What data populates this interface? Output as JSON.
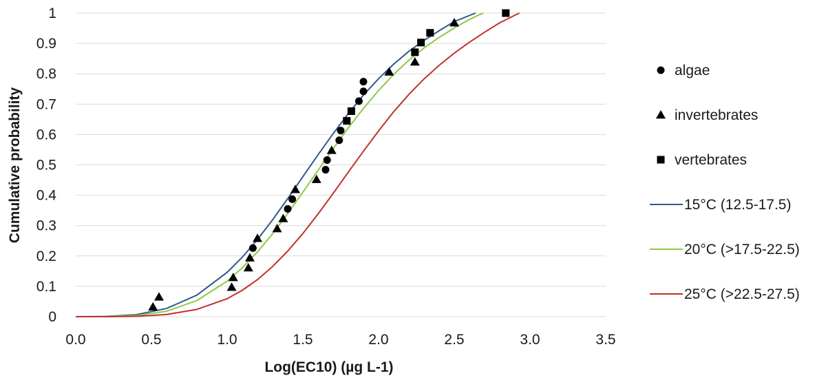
{
  "chart_data": {
    "type": "scatter",
    "title": "",
    "xlabel": "Log(EC10) (µg L-1)",
    "ylabel": "Cumulative probability",
    "xlim": [
      0,
      3.5
    ],
    "ylim": [
      0,
      1
    ],
    "x_ticks": [
      0,
      0.5,
      1,
      1.5,
      2,
      2.5,
      3,
      3.5
    ],
    "y_ticks": [
      0,
      0.1,
      0.2,
      0.3,
      0.4,
      0.5,
      0.6,
      0.7,
      0.8,
      0.9,
      1
    ],
    "x_tick_labels": [
      "0.0",
      "0.5",
      "1.0",
      "1.5",
      "2.0",
      "2.5",
      "3.0",
      "3.5"
    ],
    "y_tick_labels": [
      "0",
      "0.1",
      "0.2",
      "0.3",
      "0.4",
      "0.5",
      "0.6",
      "0.7",
      "0.8",
      "0.9",
      "1"
    ],
    "grid": true,
    "legend_position": "right",
    "series": [
      {
        "name": "algae",
        "kind": "scatter",
        "marker": "circle",
        "color": "#000000",
        "points": [
          [
            1.17,
            0.226
          ],
          [
            1.4,
            0.355
          ],
          [
            1.43,
            0.387
          ],
          [
            1.65,
            0.484
          ],
          [
            1.66,
            0.516
          ],
          [
            1.74,
            0.581
          ],
          [
            1.75,
            0.613
          ],
          [
            1.87,
            0.71
          ],
          [
            1.9,
            0.742
          ],
          [
            1.9,
            0.774
          ]
        ]
      },
      {
        "name": "invertebrates",
        "kind": "scatter",
        "marker": "triangle",
        "color": "#000000",
        "points": [
          [
            0.51,
            0.032
          ],
          [
            0.55,
            0.065
          ],
          [
            1.03,
            0.097
          ],
          [
            1.04,
            0.129
          ],
          [
            1.14,
            0.161
          ],
          [
            1.15,
            0.194
          ],
          [
            1.2,
            0.258
          ],
          [
            1.33,
            0.29
          ],
          [
            1.37,
            0.323
          ],
          [
            1.45,
            0.419
          ],
          [
            1.59,
            0.452
          ],
          [
            1.69,
            0.548
          ],
          [
            2.07,
            0.806
          ],
          [
            2.24,
            0.839
          ],
          [
            2.5,
            0.968
          ]
        ]
      },
      {
        "name": "vertebrates",
        "kind": "scatter",
        "marker": "square",
        "color": "#000000",
        "points": [
          [
            1.79,
            0.645
          ],
          [
            1.82,
            0.677
          ],
          [
            2.24,
            0.871
          ],
          [
            2.28,
            0.903
          ],
          [
            2.34,
            0.935
          ],
          [
            2.84,
            1.0
          ]
        ]
      },
      {
        "name": "15°C (12.5-17.5)",
        "kind": "line",
        "color": "#2e5a88",
        "points": [
          [
            0,
            0.0
          ],
          [
            0.2,
            0.0008
          ],
          [
            0.4,
            0.0065
          ],
          [
            0.6,
            0.027
          ],
          [
            0.8,
            0.071
          ],
          [
            1.0,
            0.146
          ],
          [
            1.1,
            0.196
          ],
          [
            1.2,
            0.254
          ],
          [
            1.3,
            0.319
          ],
          [
            1.4,
            0.389
          ],
          [
            1.5,
            0.461
          ],
          [
            1.6,
            0.533
          ],
          [
            1.7,
            0.603
          ],
          [
            1.8,
            0.669
          ],
          [
            1.9,
            0.73
          ],
          [
            2.0,
            0.784
          ],
          [
            2.1,
            0.832
          ],
          [
            2.2,
            0.874
          ],
          [
            2.3,
            0.91
          ],
          [
            2.4,
            0.942
          ],
          [
            2.5,
            0.972
          ],
          [
            2.6,
            0.992
          ],
          [
            2.64,
            1.0
          ]
        ]
      },
      {
        "name": "20°C (>17.5-22.5)",
        "kind": "line",
        "color": "#8ec84a",
        "points": [
          [
            0,
            0.0
          ],
          [
            0.2,
            0.0003
          ],
          [
            0.4,
            0.0036
          ],
          [
            0.6,
            0.018
          ],
          [
            0.8,
            0.053
          ],
          [
            1.0,
            0.117
          ],
          [
            1.1,
            0.161
          ],
          [
            1.2,
            0.213
          ],
          [
            1.3,
            0.273
          ],
          [
            1.4,
            0.34
          ],
          [
            1.5,
            0.41
          ],
          [
            1.6,
            0.482
          ],
          [
            1.7,
            0.553
          ],
          [
            1.8,
            0.622
          ],
          [
            1.9,
            0.686
          ],
          [
            2.0,
            0.745
          ],
          [
            2.1,
            0.798
          ],
          [
            2.2,
            0.845
          ],
          [
            2.3,
            0.885
          ],
          [
            2.4,
            0.92
          ],
          [
            2.5,
            0.951
          ],
          [
            2.6,
            0.979
          ],
          [
            2.69,
            1.0
          ]
        ]
      },
      {
        "name": "25°C (>22.5-27.5)",
        "kind": "line",
        "color": "#c0302a",
        "points": [
          [
            0,
            0.0
          ],
          [
            0.2,
            0.0001
          ],
          [
            0.4,
            0.0012
          ],
          [
            0.6,
            0.007
          ],
          [
            0.8,
            0.024
          ],
          [
            1.0,
            0.059
          ],
          [
            1.1,
            0.087
          ],
          [
            1.2,
            0.122
          ],
          [
            1.3,
            0.165
          ],
          [
            1.4,
            0.216
          ],
          [
            1.5,
            0.274
          ],
          [
            1.6,
            0.338
          ],
          [
            1.7,
            0.406
          ],
          [
            1.8,
            0.476
          ],
          [
            1.9,
            0.545
          ],
          [
            2.0,
            0.612
          ],
          [
            2.1,
            0.675
          ],
          [
            2.2,
            0.732
          ],
          [
            2.3,
            0.783
          ],
          [
            2.4,
            0.828
          ],
          [
            2.5,
            0.868
          ],
          [
            2.6,
            0.904
          ],
          [
            2.7,
            0.937
          ],
          [
            2.8,
            0.968
          ],
          [
            2.9,
            0.993
          ],
          [
            2.93,
            1.0
          ]
        ]
      }
    ]
  }
}
